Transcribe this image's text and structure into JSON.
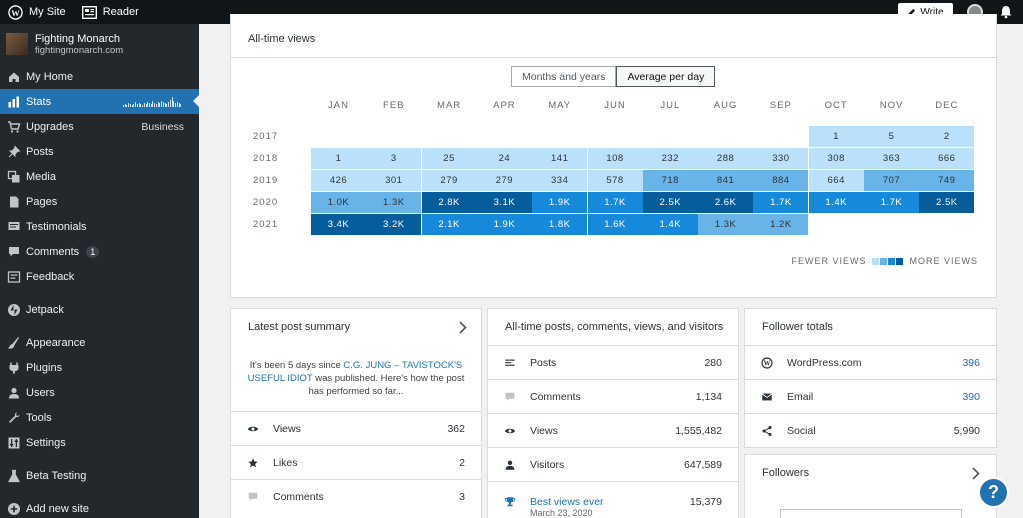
{
  "topbar": {
    "my_site": "My Site",
    "reader": "Reader",
    "write": "Write"
  },
  "site": {
    "name": "Fighting Monarch",
    "url": "fightingmonarch.com"
  },
  "nav": [
    {
      "label": "My Home",
      "icon": "home-icon"
    },
    {
      "label": "Stats",
      "icon": "stats-icon",
      "active": true
    },
    {
      "label": "Upgrades",
      "icon": "cart-icon",
      "extra": "Business"
    },
    {
      "label": "Posts",
      "icon": "pin-icon"
    },
    {
      "label": "Media",
      "icon": "media-icon"
    },
    {
      "label": "Pages",
      "icon": "pages-icon"
    },
    {
      "label": "Testimonials",
      "icon": "testimonial-icon"
    },
    {
      "label": "Comments",
      "icon": "comment-icon",
      "badge": "1"
    },
    {
      "label": "Feedback",
      "icon": "feedback-icon"
    },
    {
      "label": "Jetpack",
      "icon": "jetpack-icon"
    },
    {
      "label": "Appearance",
      "icon": "brush-icon"
    },
    {
      "label": "Plugins",
      "icon": "plugin-icon"
    },
    {
      "label": "Users",
      "icon": "users-icon"
    },
    {
      "label": "Tools",
      "icon": "wrench-icon"
    },
    {
      "label": "Settings",
      "icon": "settings-icon"
    },
    {
      "label": "Beta Testing",
      "icon": "flask-icon"
    },
    {
      "label": "Add new site",
      "icon": "plus-circle-icon"
    }
  ],
  "views": {
    "title": "All-time views",
    "toggle": [
      "Months and years",
      "Average per day"
    ],
    "months": [
      "JAN",
      "FEB",
      "MAR",
      "APR",
      "MAY",
      "JUN",
      "JUL",
      "AUG",
      "SEP",
      "OCT",
      "NOV",
      "DEC"
    ],
    "years": [
      "2017",
      "2018",
      "2019",
      "2020",
      "2021"
    ],
    "cells": [
      [
        "",
        "",
        "",
        "",
        "",
        "",
        "",
        "",
        "",
        "1",
        "5",
        "2"
      ],
      [
        "1",
        "3",
        "25",
        "24",
        "141",
        "108",
        "232",
        "288",
        "330",
        "308",
        "363",
        "666"
      ],
      [
        "426",
        "301",
        "279",
        "279",
        "334",
        "578",
        "718",
        "841",
        "884",
        "664",
        "707",
        "749"
      ],
      [
        "1.0K",
        "1.3K",
        "2.8K",
        "3.1K",
        "1.9K",
        "1.7K",
        "2.5K",
        "2.6K",
        "1.7K",
        "1.4K",
        "1.7K",
        "2.5K"
      ],
      [
        "3.4K",
        "3.2K",
        "2.1K",
        "1.9K",
        "1.8K",
        "1.6K",
        "1.4K",
        "1.3K",
        "1.2K",
        "",
        "",
        ""
      ]
    ],
    "levels": [
      [
        0,
        0,
        0,
        0,
        0,
        0,
        0,
        0,
        0,
        1,
        1,
        1
      ],
      [
        1,
        1,
        1,
        1,
        1,
        1,
        1,
        1,
        1,
        1,
        1,
        1
      ],
      [
        1,
        1,
        1,
        1,
        1,
        1,
        2,
        2,
        2,
        1,
        2,
        2
      ],
      [
        2,
        2,
        4,
        4,
        3,
        3,
        4,
        4,
        3,
        3,
        3,
        4
      ],
      [
        4,
        4,
        3,
        3,
        3,
        3,
        3,
        2,
        2,
        0,
        0,
        0
      ]
    ],
    "colors": [
      "#ffffff",
      "#bbe0fa",
      "#68b3e8",
      "#1689db",
      "#055d9c"
    ],
    "legend_fewer": "FEWER VIEWS",
    "legend_more": "MORE VIEWS"
  },
  "latest": {
    "title": "Latest post summary",
    "text_before": "It's been 5 days since ",
    "link": "C.G. JUNG – TAVISTOCK'S USEFUL IDIOT",
    "text_after": " was published. Here's how the post has performed so far...",
    "rows": [
      {
        "label": "Views",
        "value": "362",
        "icon": "eye-icon"
      },
      {
        "label": "Likes",
        "value": "2",
        "icon": "star-icon"
      },
      {
        "label": "Comments",
        "value": "3",
        "icon": "comment-icon"
      }
    ]
  },
  "alltime": {
    "title": "All-time posts, comments, views, and visitors",
    "rows": [
      {
        "label": "Posts",
        "value": "280",
        "icon": "posts-icon"
      },
      {
        "label": "Comments",
        "value": "1,134",
        "icon": "comment-icon"
      },
      {
        "label": "Views",
        "value": "1,555,482",
        "icon": "eye-icon"
      },
      {
        "label": "Visitors",
        "value": "647,589",
        "icon": "user-icon"
      },
      {
        "label": "Best views ever",
        "value": "15,379",
        "icon": "trophy-icon",
        "sub": "March 23, 2020"
      }
    ]
  },
  "followers": {
    "title": "Follower totals",
    "rows": [
      {
        "label": "WordPress.com",
        "value": "396",
        "icon": "wordpress-icon"
      },
      {
        "label": "Email",
        "value": "390",
        "icon": "mail-icon"
      },
      {
        "label": "Social",
        "value": "5,990",
        "icon": "share-icon"
      }
    ],
    "followers_title": "Followers"
  },
  "help": "?"
}
